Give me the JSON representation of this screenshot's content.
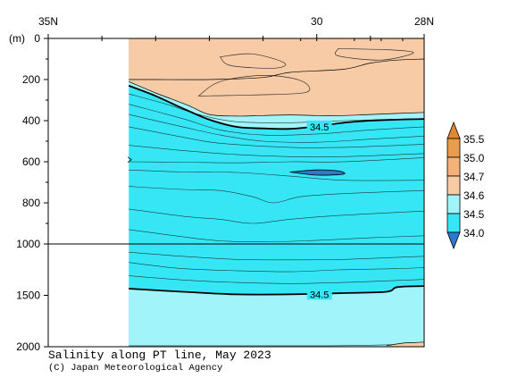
{
  "chart_data": {
    "type": "heatmap",
    "title": "Salinity along PT line, May 2023",
    "credit": "(C) Japan Meteorological Agency",
    "y_unit_label": "(m)",
    "x_axis": {
      "unit": "degrees north latitude",
      "range": [
        35,
        28
      ],
      "tick_labels": [
        {
          "value": 35,
          "text": "35N"
        },
        {
          "value": 30,
          "text": "30"
        },
        {
          "value": 28,
          "text": "28N"
        }
      ],
      "minor_ticks": [
        34,
        33,
        32,
        31,
        29
      ]
    },
    "y_axis": {
      "unit": "m",
      "direction": "depth increasing downward",
      "range": [
        0,
        2000
      ],
      "scale_break_at": 1000,
      "tick_labels": [
        0,
        200,
        400,
        600,
        800,
        1000,
        1500,
        2000
      ]
    },
    "data_coverage_lat": [
      33.5,
      28
    ],
    "color_scale": {
      "levels": [
        34.0,
        34.5,
        34.6,
        34.7,
        35.0,
        35.5
      ],
      "bins": [
        {
          "range": "< 34.0",
          "color": "#2a7ad0"
        },
        {
          "range": "34.0 - 34.5",
          "color": "#36e6f5"
        },
        {
          "range": "34.5 - 34.6",
          "color": "#a0f4fa"
        },
        {
          "range": "34.6 - 34.7",
          "color": "#f7cba6"
        },
        {
          "range": "34.7 - 35.0",
          "color": "#f3b27a"
        },
        {
          "range": "35.0 - 35.5",
          "color": "#e99c4d"
        },
        {
          "range": "> 35.5",
          "color": "#e08833"
        }
      ]
    },
    "contour_labels": [
      {
        "text": "34.5",
        "lat": 29.95,
        "depth": 430
      },
      {
        "text": "34.5",
        "lat": 29.95,
        "depth": 1490
      }
    ],
    "contours": [
      {
        "level": 34.6,
        "points": [
          [
            33.5,
            210
          ],
          [
            33.0,
            265
          ],
          [
            32.4,
            325
          ],
          [
            32.0,
            370
          ],
          [
            31.5,
            378
          ],
          [
            31.0,
            375
          ],
          [
            30.5,
            372
          ],
          [
            30.0,
            375
          ],
          [
            29.5,
            375
          ],
          [
            29.0,
            370
          ],
          [
            28.0,
            360
          ]
        ]
      },
      {
        "level": 34.5,
        "points": [
          [
            33.5,
            230
          ],
          [
            33.0,
            280
          ],
          [
            32.5,
            340
          ],
          [
            32.0,
            395
          ],
          [
            31.5,
            430
          ],
          [
            31.0,
            438
          ],
          [
            30.5,
            440
          ],
          [
            30.0,
            428
          ],
          [
            29.5,
            410
          ],
          [
            29.0,
            400
          ],
          [
            28.5,
            395
          ],
          [
            28.0,
            392
          ]
        ]
      },
      {
        "level": 34.5,
        "points": [
          [
            33.5,
            1435
          ],
          [
            32.5,
            1465
          ],
          [
            31.5,
            1490
          ],
          [
            30.5,
            1490
          ],
          [
            29.5,
            1478
          ],
          [
            28.7,
            1465
          ],
          [
            28.5,
            1420
          ],
          [
            28.0,
            1410
          ]
        ]
      },
      {
        "level": 34.6,
        "points": [
          [
            33.5,
            200
          ],
          [
            33.0,
            200
          ],
          [
            32.0,
            200
          ],
          [
            31.0,
            190
          ],
          [
            30.5,
            165
          ],
          [
            29.5,
            150
          ],
          [
            29.0,
            120
          ],
          [
            28.5,
            105
          ],
          [
            28.0,
            100
          ]
        ]
      },
      {
        "level": 34.6,
        "points": [
          [
            28.7,
            1990
          ],
          [
            28.4,
            1965
          ],
          [
            28.2,
            1960
          ],
          [
            28.0,
            1955
          ]
        ]
      }
    ],
    "closed_contours": [
      {
        "level": 34.7,
        "points": [
          [
            31.8,
            90
          ],
          [
            31.2,
            75
          ],
          [
            30.6,
            120
          ],
          [
            30.8,
            145
          ],
          [
            31.6,
            132
          ],
          [
            31.8,
            90
          ]
        ]
      },
      {
        "level": 34.7,
        "points": [
          [
            32.2,
            280
          ],
          [
            31.8,
            210
          ],
          [
            31.0,
            180
          ],
          [
            30.3,
            205
          ],
          [
            30.2,
            262
          ],
          [
            31.2,
            275
          ],
          [
            32.2,
            280
          ]
        ]
      },
      {
        "level": 34.7,
        "points": [
          [
            29.6,
            50
          ],
          [
            28.7,
            55
          ],
          [
            28.2,
            70
          ],
          [
            28.8,
            105
          ],
          [
            29.6,
            85
          ],
          [
            29.6,
            50
          ]
        ]
      }
    ],
    "low_patch": {
      "level": 34.0,
      "points": [
        [
          30.5,
          650
        ],
        [
          30.0,
          640
        ],
        [
          29.6,
          645
        ],
        [
          29.5,
          660
        ],
        [
          30.0,
          665
        ],
        [
          30.5,
          650
        ]
      ]
    },
    "thin_isolines": [
      {
        "points": [
          [
            33.5,
            270
          ],
          [
            32.8,
            320
          ],
          [
            32.2,
            370
          ],
          [
            31.5,
            405
          ],
          [
            30.5,
            410
          ],
          [
            29.5,
            400
          ],
          [
            28.0,
            390
          ]
        ]
      },
      {
        "points": [
          [
            33.5,
            320
          ],
          [
            32.5,
            390
          ],
          [
            31.8,
            445
          ],
          [
            31.0,
            470
          ],
          [
            30.0,
            465
          ],
          [
            29.0,
            445
          ],
          [
            28.0,
            430
          ]
        ]
      },
      {
        "points": [
          [
            33.5,
            370
          ],
          [
            32.5,
            430
          ],
          [
            31.8,
            470
          ],
          [
            31.0,
            500
          ],
          [
            30.0,
            505
          ],
          [
            29.0,
            490
          ],
          [
            28.0,
            475
          ]
        ]
      },
      {
        "points": [
          [
            33.5,
            430
          ],
          [
            32.5,
            480
          ],
          [
            31.8,
            510
          ],
          [
            30.5,
            530
          ],
          [
            29.5,
            530
          ],
          [
            28.0,
            515
          ]
        ]
      },
      {
        "points": [
          [
            33.5,
            520
          ],
          [
            32.5,
            545
          ],
          [
            31.5,
            565
          ],
          [
            30.5,
            575
          ],
          [
            29.5,
            575
          ],
          [
            28.0,
            560
          ]
        ]
      },
      {
        "points": [
          [
            33.5,
            600
          ],
          [
            32.5,
            602
          ],
          [
            31.5,
            605
          ],
          [
            30.5,
            600
          ],
          [
            29.5,
            600
          ],
          [
            28.0,
            580
          ]
        ]
      },
      {
        "points": [
          [
            33.5,
            640
          ],
          [
            32.5,
            650
          ],
          [
            31.5,
            652
          ],
          [
            30.5,
            670
          ],
          [
            29.5,
            690
          ],
          [
            28.0,
            690
          ]
        ]
      },
      {
        "points": [
          [
            33.5,
            720
          ],
          [
            32.5,
            735
          ],
          [
            31.8,
            740
          ],
          [
            31.2,
            770
          ],
          [
            30.8,
            800
          ],
          [
            30.3,
            770
          ],
          [
            29.5,
            755
          ],
          [
            28.0,
            740
          ]
        ]
      },
      {
        "points": [
          [
            33.5,
            830
          ],
          [
            32.5,
            865
          ],
          [
            31.8,
            880
          ],
          [
            31.2,
            900
          ],
          [
            30.5,
            880
          ],
          [
            29.5,
            860
          ],
          [
            28.0,
            840
          ]
        ]
      },
      {
        "points": [
          [
            33.5,
            930
          ],
          [
            32.5,
            965
          ],
          [
            31.8,
            985
          ],
          [
            31.0,
            990
          ],
          [
            30.2,
            985
          ],
          [
            29.0,
            970
          ],
          [
            28.0,
            960
          ]
        ]
      },
      {
        "points": [
          [
            33.5,
            1080
          ],
          [
            32.5,
            1120
          ],
          [
            31.5,
            1150
          ],
          [
            30.5,
            1155
          ],
          [
            29.5,
            1150
          ],
          [
            28.5,
            1130
          ],
          [
            28.0,
            1120
          ]
        ]
      },
      {
        "points": [
          [
            33.5,
            1180
          ],
          [
            32.5,
            1240
          ],
          [
            31.5,
            1260
          ],
          [
            30.5,
            1270
          ],
          [
            29.5,
            1250
          ],
          [
            28.5,
            1240
          ],
          [
            28.0,
            1230
          ]
        ]
      },
      {
        "points": [
          [
            33.5,
            1310
          ],
          [
            32.5,
            1350
          ],
          [
            31.5,
            1375
          ],
          [
            30.5,
            1385
          ],
          [
            29.5,
            1375
          ],
          [
            28.5,
            1355
          ],
          [
            28.0,
            1345
          ]
        ]
      },
      {
        "points": [
          [
            33.5,
            1990
          ],
          [
            30.0,
            1990
          ],
          [
            29.0,
            1985
          ],
          [
            28.6,
            1980
          ]
        ]
      }
    ]
  }
}
